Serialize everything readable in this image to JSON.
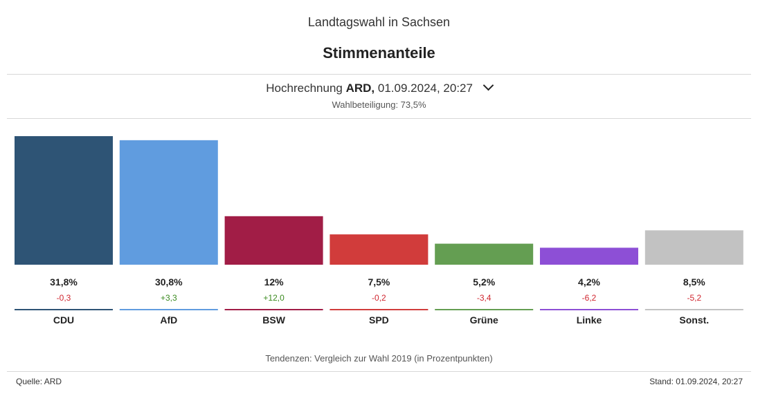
{
  "header": {
    "super_title": "Landtagswahl in Sachsen",
    "title": "Stimmenanteile"
  },
  "projection": {
    "prefix": "Hochrechnung",
    "source": "ARD,",
    "datetime": "01.09.2024, 20:27",
    "turnout": "Wahlbeteiligung: 73,5%"
  },
  "chart_data": {
    "type": "bar",
    "categories": [
      "CDU",
      "AfD",
      "BSW",
      "SPD",
      "Grüne",
      "Linke",
      "Sonst."
    ],
    "values": [
      31.8,
      30.8,
      12,
      7.5,
      5.2,
      4.2,
      8.5
    ],
    "value_labels": [
      "31,8%",
      "30,8%",
      "12%",
      "7,5%",
      "5,2%",
      "4,2%",
      "8,5%"
    ],
    "changes": [
      -0.3,
      3.3,
      12.0,
      -0.2,
      -3.4,
      -6.2,
      -5.2
    ],
    "change_labels": [
      "-0,3",
      "+3,3",
      "+12,0",
      "-0,2",
      "-3,4",
      "-6,2",
      "-5,2"
    ],
    "colors": [
      "#2e5475",
      "#609cdf",
      "#a11d46",
      "#d13c3b",
      "#649e52",
      "#8d4fd6",
      "#c2c2c2"
    ],
    "positive_color": "#3a8a1f",
    "negative_color": "#d0262f",
    "ylim": [
      0,
      31.8
    ],
    "grid": false,
    "xlabel": "",
    "ylabel": ""
  },
  "footer": {
    "note": "Tendenzen: Vergleich zur Wahl 2019 (in Prozentpunkten)",
    "source": "Quelle: ARD",
    "stand": "Stand: 01.09.2024, 20:27"
  }
}
